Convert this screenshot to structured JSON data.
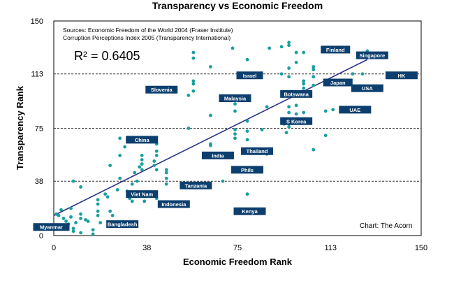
{
  "chart_data": {
    "type": "scatter",
    "title": "Transparency vs Economic Freedom",
    "xlabel": "Economic Freedom Rank",
    "ylabel": "Transparency Rank",
    "xlim": [
      0,
      150
    ],
    "ylim": [
      0,
      150
    ],
    "x_ticks": [
      "0",
      "38",
      "75",
      "113",
      "150"
    ],
    "y_ticks": [
      "0",
      "38",
      "75",
      "113",
      "150"
    ],
    "gridlines_y": [
      38,
      75,
      113
    ],
    "grid": "horizontal dashed at 38, 75, 113",
    "sources": [
      "Sources: Economic Freedom of the World 2004 (Fraser Institute)",
      "Corruption Perceptions Index 2005 (Transparency International)"
    ],
    "r_squared": "R² = 0.6405",
    "credit": "Chart: The Acorn",
    "colors": {
      "points": "#1a9e9e",
      "trendline": "#2a2f8a",
      "label_box": "#0d3f6e",
      "frame": "#000000",
      "grid": "#333333"
    },
    "trendline": {
      "x1": 0,
      "y1": 14,
      "x2": 128,
      "y2": 123
    },
    "points": [
      {
        "x": 1,
        "y": 15
      },
      {
        "x": 2,
        "y": 14
      },
      {
        "x": 3,
        "y": 18
      },
      {
        "x": 4,
        "y": 12
      },
      {
        "x": 5,
        "y": 10
      },
      {
        "x": 6,
        "y": 8
      },
      {
        "x": 7,
        "y": 19
      },
      {
        "x": 7,
        "y": 13
      },
      {
        "x": 8,
        "y": 38
      },
      {
        "x": 8,
        "y": 5
      },
      {
        "x": 8,
        "y": 3
      },
      {
        "x": 9,
        "y": 9
      },
      {
        "x": 11,
        "y": 15
      },
      {
        "x": 11,
        "y": 34
      },
      {
        "x": 11,
        "y": 12
      },
      {
        "x": 11,
        "y": 2
      },
      {
        "x": 13,
        "y": 11
      },
      {
        "x": 14,
        "y": 10
      },
      {
        "x": 16,
        "y": 1
      },
      {
        "x": 16,
        "y": 4
      },
      {
        "x": 18,
        "y": 25
      },
      {
        "x": 18,
        "y": 22
      },
      {
        "x": 18,
        "y": 17
      },
      {
        "x": 18,
        "y": 14
      },
      {
        "x": 19,
        "y": 9
      },
      {
        "x": 21,
        "y": 29
      },
      {
        "x": 22,
        "y": 27
      },
      {
        "x": 23,
        "y": 17
      },
      {
        "x": 23,
        "y": 49
      },
      {
        "x": 24,
        "y": 14
      },
      {
        "x": 26,
        "y": 32
      },
      {
        "x": 27,
        "y": 40
      },
      {
        "x": 27,
        "y": 56
      },
      {
        "x": 27,
        "y": 68
      },
      {
        "x": 29,
        "y": 62
      },
      {
        "x": 30,
        "y": 31
      },
      {
        "x": 31,
        "y": 26
      },
      {
        "x": 32,
        "y": 24
      },
      {
        "x": 32,
        "y": 36
      },
      {
        "x": 33,
        "y": 44
      },
      {
        "x": 34,
        "y": 38
      },
      {
        "x": 35,
        "y": 48
      },
      {
        "x": 36,
        "y": 50
      },
      {
        "x": 36,
        "y": 46
      },
      {
        "x": 36,
        "y": 56
      },
      {
        "x": 36,
        "y": 53
      },
      {
        "x": 37,
        "y": 24
      },
      {
        "x": 41,
        "y": 49
      },
      {
        "x": 41,
        "y": 52
      },
      {
        "x": 42,
        "y": 56
      },
      {
        "x": 42,
        "y": 59
      },
      {
        "x": 42,
        "y": 64
      },
      {
        "x": 42,
        "y": 46
      },
      {
        "x": 42,
        "y": 26
      },
      {
        "x": 46,
        "y": 46
      },
      {
        "x": 46,
        "y": 44
      },
      {
        "x": 46,
        "y": 40
      },
      {
        "x": 46,
        "y": 36
      },
      {
        "x": 55,
        "y": 75
      },
      {
        "x": 55,
        "y": 98
      },
      {
        "x": 57,
        "y": 128
      },
      {
        "x": 57,
        "y": 124
      },
      {
        "x": 57,
        "y": 108
      },
      {
        "x": 57,
        "y": 106
      },
      {
        "x": 57,
        "y": 101
      },
      {
        "x": 64,
        "y": 118
      },
      {
        "x": 64,
        "y": 84
      },
      {
        "x": 64,
        "y": 63
      },
      {
        "x": 64,
        "y": 64
      },
      {
        "x": 69,
        "y": 95
      },
      {
        "x": 69,
        "y": 38
      },
      {
        "x": 73,
        "y": 131
      },
      {
        "x": 74,
        "y": 92
      },
      {
        "x": 74,
        "y": 87
      },
      {
        "x": 74,
        "y": 74
      },
      {
        "x": 74,
        "y": 71
      },
      {
        "x": 74,
        "y": 68
      },
      {
        "x": 79,
        "y": 123
      },
      {
        "x": 79,
        "y": 80
      },
      {
        "x": 79,
        "y": 73
      },
      {
        "x": 79,
        "y": 67
      },
      {
        "x": 79,
        "y": 29
      },
      {
        "x": 85,
        "y": 74
      },
      {
        "x": 87,
        "y": 57
      },
      {
        "x": 87,
        "y": 90
      },
      {
        "x": 88,
        "y": 131
      },
      {
        "x": 93,
        "y": 132
      },
      {
        "x": 93,
        "y": 113
      },
      {
        "x": 94,
        "y": 78
      },
      {
        "x": 95,
        "y": 72
      },
      {
        "x": 96,
        "y": 135
      },
      {
        "x": 96,
        "y": 133
      },
      {
        "x": 96,
        "y": 111
      },
      {
        "x": 96,
        "y": 117
      },
      {
        "x": 96,
        "y": 90
      },
      {
        "x": 96,
        "y": 86
      },
      {
        "x": 96,
        "y": 78
      },
      {
        "x": 96,
        "y": 76
      },
      {
        "x": 99,
        "y": 128
      },
      {
        "x": 99,
        "y": 121
      },
      {
        "x": 99,
        "y": 98
      },
      {
        "x": 99,
        "y": 91
      },
      {
        "x": 99,
        "y": 85
      },
      {
        "x": 102,
        "y": 128
      },
      {
        "x": 102,
        "y": 108
      },
      {
        "x": 102,
        "y": 106
      },
      {
        "x": 102,
        "y": 103
      },
      {
        "x": 102,
        "y": 98
      },
      {
        "x": 102,
        "y": 86
      },
      {
        "x": 106,
        "y": 118
      },
      {
        "x": 106,
        "y": 116
      },
      {
        "x": 106,
        "y": 111
      },
      {
        "x": 106,
        "y": 105
      },
      {
        "x": 106,
        "y": 60
      },
      {
        "x": 111,
        "y": 87
      },
      {
        "x": 111,
        "y": 70
      },
      {
        "x": 114,
        "y": 88
      },
      {
        "x": 122,
        "y": 113
      },
      {
        "x": 126,
        "y": 113
      },
      {
        "x": 128,
        "y": 129
      }
    ],
    "labels": [
      {
        "text": "Finland",
        "x": 115,
        "y": 130,
        "w": 42
      },
      {
        "text": "Singapore",
        "x": 130,
        "y": 126,
        "w": 46
      },
      {
        "text": "Israel",
        "x": 80,
        "y": 112,
        "w": 38
      },
      {
        "text": "HK",
        "x": 142,
        "y": 112,
        "w": 46
      },
      {
        "text": "Japan",
        "x": 116,
        "y": 107,
        "w": 42
      },
      {
        "text": "USA",
        "x": 128,
        "y": 103,
        "w": 46
      },
      {
        "text": "Slovenia",
        "x": 44,
        "y": 102,
        "w": 46
      },
      {
        "text": "Botswana",
        "x": 99,
        "y": 99,
        "w": 46
      },
      {
        "text": "Malaysia",
        "x": 74,
        "y": 96,
        "w": 46
      },
      {
        "text": "UAE",
        "x": 123,
        "y": 88,
        "w": 46
      },
      {
        "text": "S Korea",
        "x": 99,
        "y": 80,
        "w": 46
      },
      {
        "text": "China",
        "x": 36,
        "y": 67,
        "w": 46
      },
      {
        "text": "Thailand",
        "x": 83,
        "y": 59,
        "w": 46
      },
      {
        "text": "India",
        "x": 67,
        "y": 56,
        "w": 46
      },
      {
        "text": "Phils",
        "x": 79,
        "y": 46,
        "w": 46
      },
      {
        "text": "Tanzania",
        "x": 58,
        "y": 35,
        "w": 46
      },
      {
        "text": "Viet Nam",
        "x": 36,
        "y": 29,
        "w": 46
      },
      {
        "text": "Indonesia",
        "x": 49,
        "y": 22,
        "w": 46
      },
      {
        "text": "Kenya",
        "x": 80,
        "y": 17,
        "w": 46
      },
      {
        "text": "Bangladesh",
        "x": 28,
        "y": 8,
        "w": 46
      },
      {
        "text": "Myanmar",
        "x": -1,
        "y": 6,
        "w": 52
      }
    ]
  }
}
